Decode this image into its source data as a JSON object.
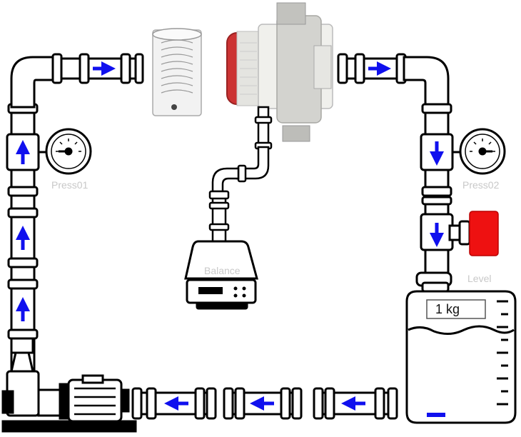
{
  "labels": {
    "press01": "Press01",
    "press02": "Press02",
    "balance": "Balance",
    "level": "Level",
    "tank_mass": "1 kg"
  },
  "colors": {
    "pipe_fill": "#ffffff",
    "pipe_stroke": "#000000",
    "flow_arrow": "#1010ee",
    "valve_actuator": "#ee1111",
    "label_gray": "#c8c8c8",
    "machine_gray": "#d9d9d4",
    "seal_red": "#cc3333"
  },
  "flow": {
    "left_vertical": "up",
    "top_left": "right",
    "top_right": "right",
    "right_vertical": "down",
    "bottom_row": "left"
  },
  "icons": {
    "gauge_left": "pressure-gauge-icon",
    "gauge_right": "pressure-gauge-icon",
    "pump": "pump-motor-icon",
    "balance": "scale-icon",
    "tank": "level-tank-icon",
    "valve": "valve-actuator-icon"
  }
}
